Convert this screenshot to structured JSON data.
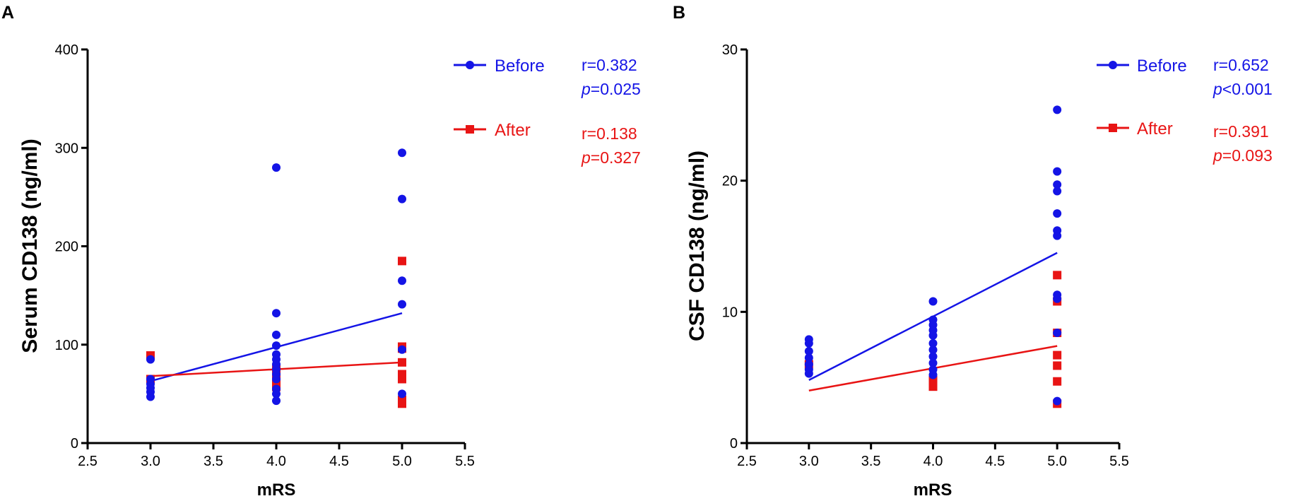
{
  "chart_data": [
    {
      "type": "scatter",
      "panel": "A",
      "title": "",
      "xlabel": "mRS",
      "ylabel": "Serum CD138 (ng/ml)",
      "xlim": [
        2.5,
        5.5
      ],
      "ylim": [
        0,
        400
      ],
      "xticks": [
        "2.5",
        "3.0",
        "3.5",
        "4.0",
        "4.5",
        "5.0",
        "5.5"
      ],
      "yticks": [
        "0",
        "100",
        "200",
        "300",
        "400"
      ],
      "legend_position": "top-right",
      "series": [
        {
          "name": "Before",
          "color": "#1414e6",
          "marker": "circle",
          "points": [
            [
              3,
              85
            ],
            [
              3,
              65
            ],
            [
              3,
              60
            ],
            [
              3,
              56
            ],
            [
              3,
              52
            ],
            [
              3,
              47
            ],
            [
              4,
              280
            ],
            [
              4,
              132
            ],
            [
              4,
              110
            ],
            [
              4,
              99
            ],
            [
              4,
              90
            ],
            [
              4,
              85
            ],
            [
              4,
              80
            ],
            [
              4,
              75
            ],
            [
              4,
              70
            ],
            [
              4,
              65
            ],
            [
              4,
              55
            ],
            [
              4,
              50
            ],
            [
              4,
              43
            ],
            [
              5,
              295
            ],
            [
              5,
              248
            ],
            [
              5,
              165
            ],
            [
              5,
              141
            ],
            [
              5,
              95
            ],
            [
              5,
              50
            ]
          ],
          "fit": {
            "x": [
              3.0,
              5.0
            ],
            "y": [
              63,
              132
            ]
          },
          "stat_r": "r=0.382",
          "stat_p_symbol": "p",
          "stat_p_value": "=0.025"
        },
        {
          "name": "After",
          "color": "#e81414",
          "marker": "square",
          "points": [
            [
              3,
              89
            ],
            [
              3,
              65
            ],
            [
              4,
              75
            ],
            [
              4,
              72
            ],
            [
              4,
              70
            ],
            [
              4,
              68
            ],
            [
              4,
              60
            ],
            [
              4,
              57
            ],
            [
              5,
              185
            ],
            [
              5,
              98
            ],
            [
              5,
              96
            ],
            [
              5,
              82
            ],
            [
              5,
              70
            ],
            [
              5,
              65
            ],
            [
              5,
              44
            ],
            [
              5,
              40
            ]
          ],
          "fit": {
            "x": [
              3.0,
              5.0
            ],
            "y": [
              68,
              82
            ]
          },
          "stat_r": "r=0.138",
          "stat_p_symbol": "p",
          "stat_p_value": "=0.327"
        }
      ]
    },
    {
      "type": "scatter",
      "panel": "B",
      "title": "",
      "xlabel": "mRS",
      "ylabel": "CSF CD138 (ng/ml)",
      "xlim": [
        2.5,
        5.5
      ],
      "ylim": [
        0,
        30
      ],
      "xticks": [
        "2.5",
        "3.0",
        "3.5",
        "4.0",
        "4.5",
        "5.0",
        "5.5"
      ],
      "yticks": [
        "0",
        "10",
        "20",
        "30"
      ],
      "legend_position": "top-right",
      "series": [
        {
          "name": "Before",
          "color": "#1414e6",
          "marker": "circle",
          "points": [
            [
              3,
              7.9
            ],
            [
              3,
              7.6
            ],
            [
              3,
              7.0
            ],
            [
              3,
              6.5
            ],
            [
              3,
              6.0
            ],
            [
              3,
              5.6
            ],
            [
              3,
              5.3
            ],
            [
              4,
              10.8
            ],
            [
              4,
              9.4
            ],
            [
              4,
              9.0
            ],
            [
              4,
              8.6
            ],
            [
              4,
              8.2
            ],
            [
              4,
              7.6
            ],
            [
              4,
              7.1
            ],
            [
              4,
              6.6
            ],
            [
              4,
              6.1
            ],
            [
              4,
              5.6
            ],
            [
              4,
              5.2
            ],
            [
              5,
              25.4
            ],
            [
              5,
              20.7
            ],
            [
              5,
              19.7
            ],
            [
              5,
              19.2
            ],
            [
              5,
              17.5
            ],
            [
              5,
              16.2
            ],
            [
              5,
              15.8
            ],
            [
              5,
              11.3
            ],
            [
              5,
              11.0
            ],
            [
              5,
              8.4
            ],
            [
              5,
              3.2
            ]
          ],
          "fit": {
            "x": [
              3.0,
              5.0
            ],
            "y": [
              4.8,
              14.5
            ]
          },
          "stat_r": "r=0.652",
          "stat_p_symbol": "p",
          "stat_p_value": "<0.001"
        },
        {
          "name": "After",
          "color": "#e81414",
          "marker": "square",
          "points": [
            [
              3,
              6.0
            ],
            [
              4,
              4.8
            ],
            [
              4,
              4.5
            ],
            [
              4,
              4.3
            ],
            [
              5,
              12.8
            ],
            [
              5,
              10.8
            ],
            [
              5,
              8.4
            ],
            [
              5,
              6.7
            ],
            [
              5,
              5.9
            ],
            [
              5,
              4.7
            ],
            [
              5,
              3.0
            ]
          ],
          "fit": {
            "x": [
              3.0,
              5.0
            ],
            "y": [
              4.0,
              7.4
            ]
          },
          "stat_r": "r=0.391",
          "stat_p_symbol": "p",
          "stat_p_value": "=0.093"
        }
      ]
    }
  ]
}
